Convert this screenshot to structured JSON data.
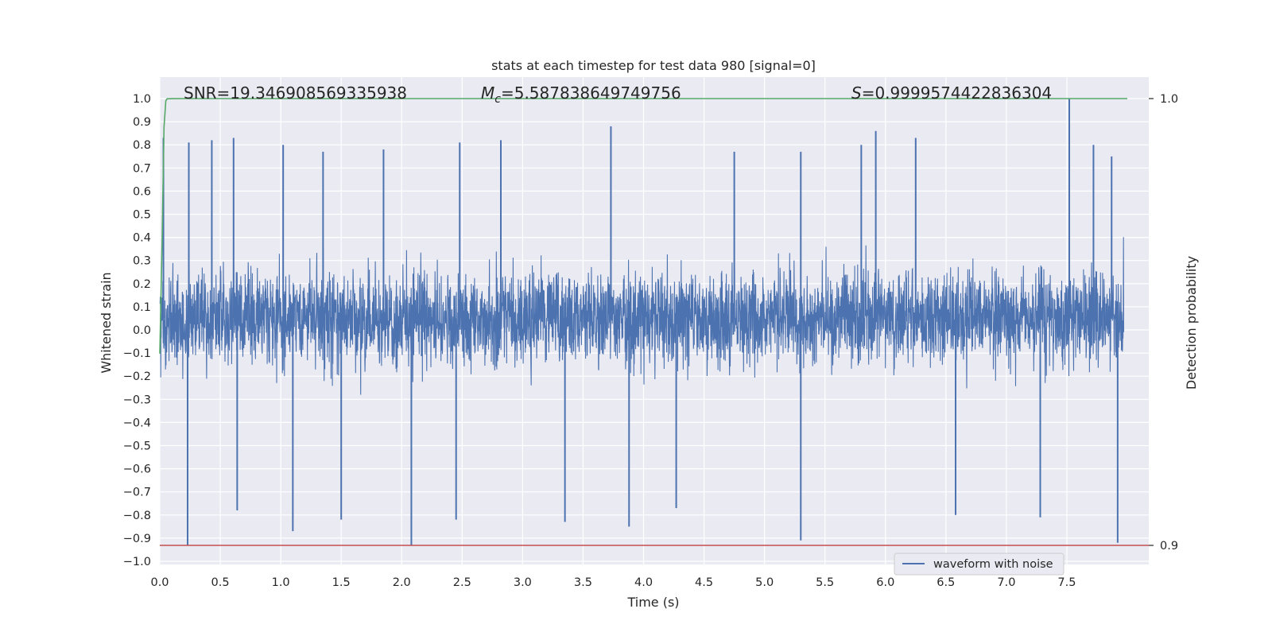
{
  "chart_data": {
    "type": "line",
    "title": "stats at each timestep for test data 980 [signal=0]",
    "xlabel": "Time (s)",
    "ylabel": "Whitened strain",
    "ylabel_right": "Detection probability",
    "xlim": [
      0,
      8.0
    ],
    "ylim": [
      -1.05,
      1.05
    ],
    "ylim_right": [
      0.8999,
      1.0
    ],
    "x_ticks": [
      "0.0",
      "0.5",
      "1.0",
      "1.5",
      "2.0",
      "2.5",
      "3.0",
      "3.5",
      "4.0",
      "4.5",
      "5.0",
      "5.5",
      "6.0",
      "6.5",
      "7.0",
      "7.5"
    ],
    "x_tick_values": [
      0,
      0.5,
      1.0,
      1.5,
      2.0,
      2.5,
      3.0,
      3.5,
      4.0,
      4.5,
      5.0,
      5.5,
      6.0,
      6.5,
      7.0,
      7.5
    ],
    "y_ticks": [
      "1.0",
      "0.9",
      "0.8",
      "0.7",
      "0.6",
      "0.5",
      "0.4",
      "0.3",
      "0.2",
      "0.1",
      "0.0",
      "−0.1",
      "−0.2",
      "−0.3",
      "−0.4",
      "−0.5",
      "−0.6",
      "−0.7",
      "−0.8",
      "−0.9",
      "−1.0"
    ],
    "y_tick_values": [
      1.0,
      0.9,
      0.8,
      0.7,
      0.6,
      0.5,
      0.4,
      0.3,
      0.2,
      0.1,
      0.0,
      -0.1,
      -0.2,
      -0.3,
      -0.4,
      -0.5,
      -0.6,
      -0.7,
      -0.8,
      -0.9,
      -1.0
    ],
    "y_ticks_right": [
      "1.0",
      "0.9"
    ],
    "y_tick_values_right": [
      1.0,
      0.9
    ],
    "grid": true,
    "legend_position": "bottom-right",
    "annotations": {
      "snr": "SNR=19.346908569335938",
      "mc_symbol": "M",
      "mc_sub": "c",
      "mc_value": "=5.587838649749756",
      "s_symbol": "S",
      "s_value": "=0.9999574422836304"
    },
    "series": [
      {
        "name": "waveform with noise",
        "color": "#4c72b0",
        "description": "dense noise time series, mostly within [-0.45, 0.55]",
        "spikes_up": [
          [
            0.03,
            0.83
          ],
          [
            0.24,
            0.81
          ],
          [
            0.43,
            0.82
          ],
          [
            0.61,
            0.83
          ],
          [
            1.02,
            0.8
          ],
          [
            1.35,
            0.77
          ],
          [
            1.85,
            0.78
          ],
          [
            2.48,
            0.81
          ],
          [
            2.82,
            0.82
          ],
          [
            3.73,
            0.88
          ],
          [
            4.75,
            0.77
          ],
          [
            5.3,
            0.77
          ],
          [
            5.8,
            0.8
          ],
          [
            5.92,
            0.86
          ],
          [
            6.25,
            0.83
          ],
          [
            7.52,
            1.0
          ],
          [
            7.72,
            0.8
          ],
          [
            7.87,
            0.75
          ]
        ],
        "spikes_down": [
          [
            0.23,
            -0.93
          ],
          [
            0.64,
            -0.78
          ],
          [
            1.1,
            -0.87
          ],
          [
            1.5,
            -0.82
          ],
          [
            2.08,
            -0.93
          ],
          [
            2.45,
            -0.82
          ],
          [
            3.35,
            -0.83
          ],
          [
            3.88,
            -0.85
          ],
          [
            4.27,
            -0.77
          ],
          [
            5.3,
            -0.91
          ],
          [
            6.58,
            -0.8
          ],
          [
            7.28,
            -0.81
          ],
          [
            7.92,
            -0.92
          ]
        ]
      },
      {
        "name": "",
        "color": "#55a868",
        "axis": "right",
        "x": [
          0,
          0.02,
          0.035,
          0.05,
          0.06,
          0.1,
          0.2,
          8.0
        ],
        "y": [
          0.9429,
          0.969,
          0.9936,
          0.9995,
          0.99995,
          0.99999,
          1.0,
          1.0
        ]
      },
      {
        "name": "",
        "color": "#c44e52",
        "axis": "right",
        "x": [
          0,
          8.0
        ],
        "y": [
          0.9,
          0.9
        ]
      }
    ]
  },
  "colors": {
    "plot_bg": "#eaeaf2",
    "grid": "#ffffff",
    "waveform": "#4c72b0",
    "probability": "#55a868",
    "threshold": "#c44e52"
  }
}
